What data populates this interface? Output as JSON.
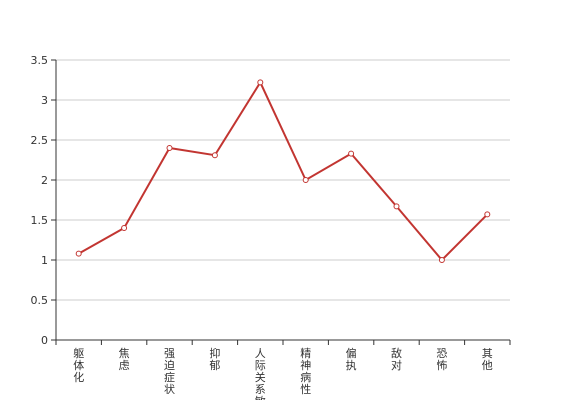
{
  "chart_data": {
    "type": "line",
    "categories": [
      "躯体化",
      "焦虑",
      "强迫症状",
      "抑郁",
      "人际关系敏感",
      "精神病性",
      "偏执",
      "敌对",
      "恐怖",
      "其他"
    ],
    "values": [
      1.08,
      1.4,
      2.4,
      2.31,
      3.22,
      2.0,
      2.33,
      1.67,
      1.0,
      1.57
    ],
    "ylim": [
      0,
      3.5
    ],
    "yticks": [
      "0",
      "0.5",
      "1",
      "1.5",
      "2",
      "2.5",
      "3",
      "3.5"
    ],
    "grid": true,
    "series_color": "#c23531"
  }
}
